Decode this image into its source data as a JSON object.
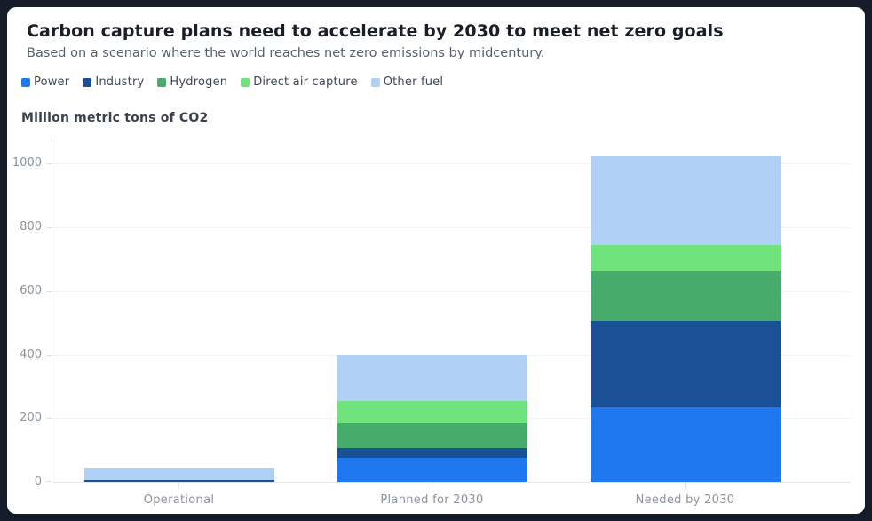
{
  "window": {
    "outer_background": "#151c29",
    "card_background": "#ffffff"
  },
  "header": {
    "title": "Carbon capture plans need to accelerate by 2030 to meet net zero goals",
    "subtitle": "Based on a scenario where the world reaches net zero emissions by midcentury."
  },
  "chart_data": {
    "type": "bar",
    "stacked": true,
    "title": "Carbon capture plans need to accelerate by 2030 to meet net zero goals",
    "subtitle": "Based on a scenario where the world reaches net zero emissions by midcentury.",
    "ylabel": "Million metric tons of CO2",
    "xlabel": "",
    "categories": [
      "Operational",
      "Planned for 2030",
      "Needed by 2030"
    ],
    "series": [
      {
        "name": "Power",
        "color": "#1f78f0",
        "values": [
          0,
          75,
          235
        ]
      },
      {
        "name": "Industry",
        "color": "#1b4f96",
        "values": [
          5,
          30,
          270
        ]
      },
      {
        "name": "Hydrogen",
        "color": "#47ab6b",
        "values": [
          0,
          80,
          160
        ]
      },
      {
        "name": "Direct air capture",
        "color": "#70e37d",
        "values": [
          0,
          70,
          80
        ]
      },
      {
        "name": "Other fuel",
        "color": "#b1d0f5",
        "values": [
          40,
          145,
          280
        ]
      }
    ],
    "y_ticks": [
      0,
      200,
      400,
      600,
      800,
      1000
    ],
    "y_tick_labels": [
      "0",
      "200",
      "400",
      "600",
      "800",
      "1000"
    ],
    "ylim": [
      0,
      1085
    ],
    "legend_position": "top-left",
    "grid": "faint-horizontal"
  }
}
